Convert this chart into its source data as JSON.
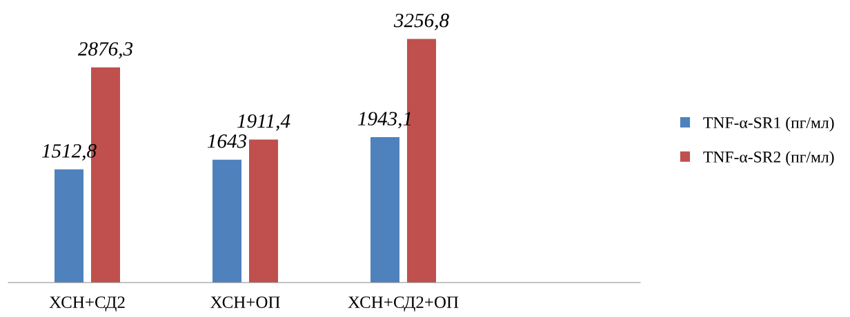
{
  "chart_data": {
    "type": "bar",
    "categories": [
      "ХСН+СД2",
      "ХСН+ОП",
      "ХСН+СД2+ОП",
      null
    ],
    "series": [
      {
        "name": "TNF-α-SR1 (пг/мл)",
        "color": "#4f81bd",
        "values": [
          1512.8,
          1643,
          1943.1,
          null
        ],
        "value_labels": [
          "1512,8",
          "1643",
          "1943,1",
          null
        ]
      },
      {
        "name": "TNF-α-SR2 (пг/мл)",
        "color": "#c0504d",
        "values": [
          2876.3,
          1911.4,
          3256.8,
          null
        ],
        "value_labels": [
          "2876,3",
          "1911,4",
          "3256,8",
          null
        ]
      }
    ],
    "legend": "right",
    "grid": false,
    "tick_labels": "x"
  }
}
